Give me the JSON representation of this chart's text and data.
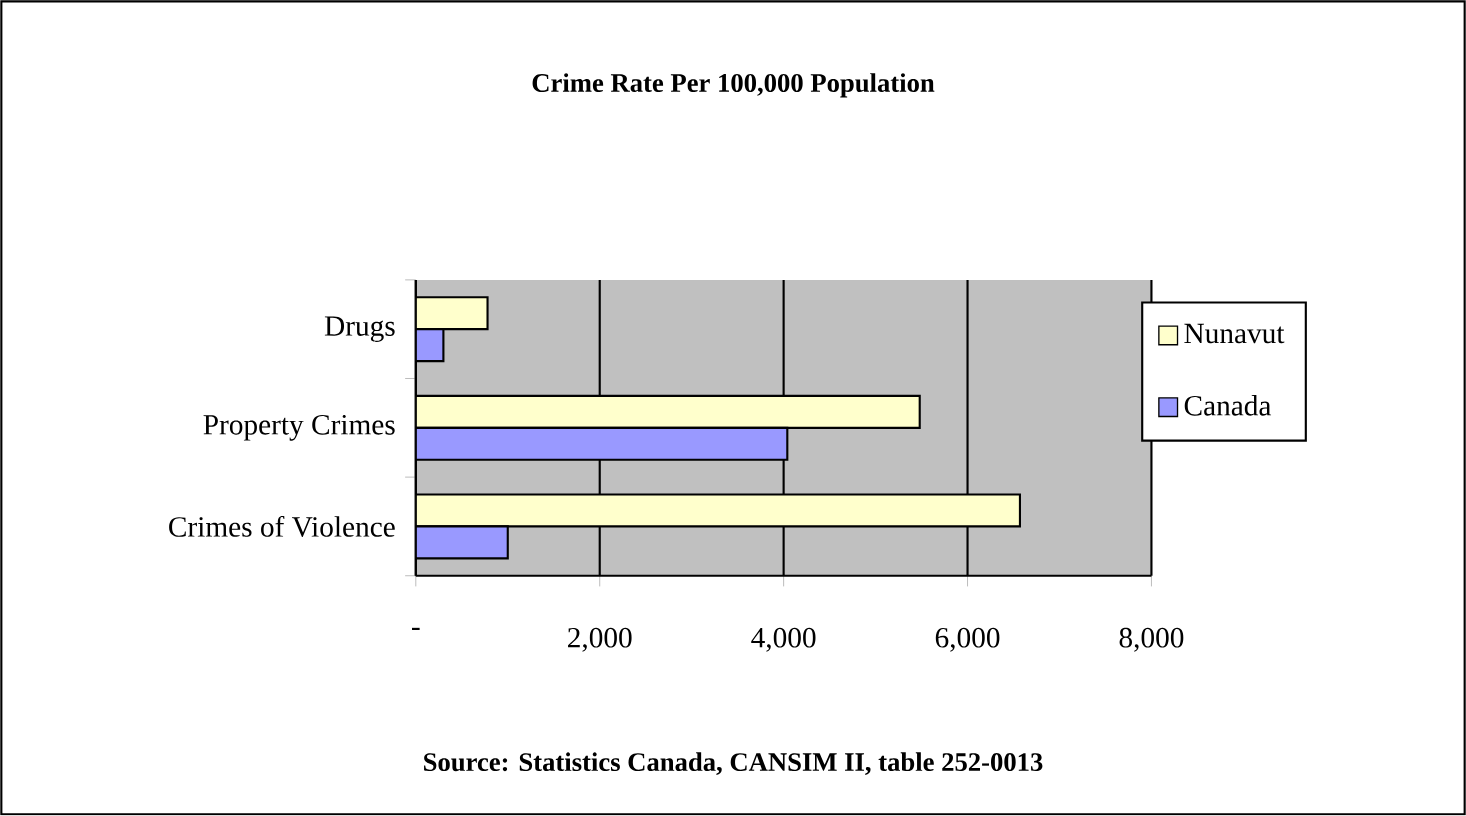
{
  "chart_data": {
    "type": "bar",
    "orientation": "horizontal",
    "title": "Crime Rate Per 100,000 Population",
    "categories": [
      "Drugs",
      "Property Crimes",
      "Crimes of Violence"
    ],
    "series": [
      {
        "name": "Nunavut",
        "color": "#ffffcc",
        "values": [
          780,
          5480,
          6570
        ]
      },
      {
        "name": "Canada",
        "color": "#9999ff",
        "values": [
          300,
          4040,
          1000
        ]
      }
    ],
    "xlim": [
      0,
      8000
    ],
    "xticks": [
      {
        "value": 0,
        "label": "-"
      },
      {
        "value": 2000,
        "label": "2,000"
      },
      {
        "value": 4000,
        "label": "4,000"
      },
      {
        "value": 6000,
        "label": "6,000"
      },
      {
        "value": 8000,
        "label": "8,000"
      }
    ],
    "grid": "x",
    "legend": "right",
    "annotations": [
      "Source: Statistics Canada, CANSIM II, table 252-0013"
    ]
  }
}
